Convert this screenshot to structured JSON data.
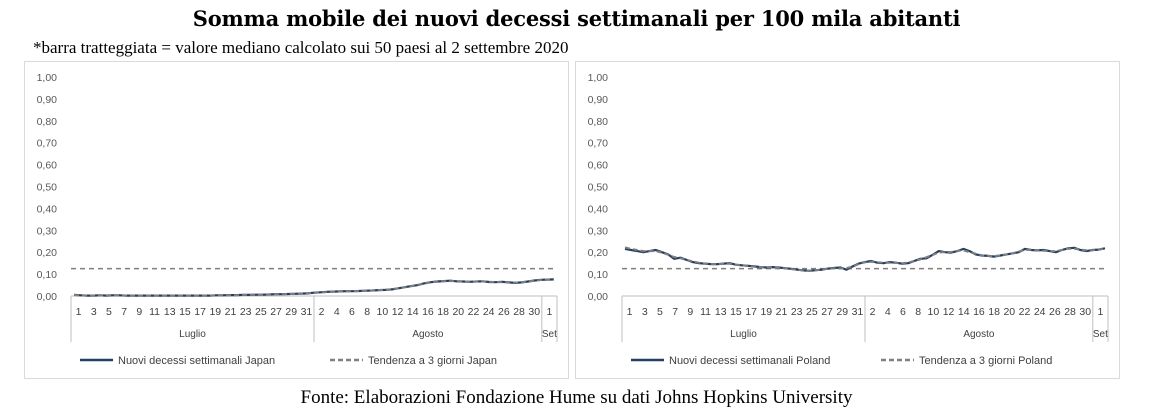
{
  "title": "Somma mobile dei nuovi decessi settimanali per 100 mila abitanti",
  "subtitle": "*barra tratteggiata = valore mediano calcolato sui 50 paesi al 2 settembre 2020",
  "footer": "Fonte: Elaborazioni Fondazione Hume su dati Johns Hopkins University",
  "colors": {
    "series": "#243f60",
    "trend": "#7f7f7f",
    "median": "#7f7f7f",
    "axis": "#bfbfbf"
  },
  "chart_data": [
    {
      "type": "line",
      "country": "Japan",
      "ylim": [
        0,
        1
      ],
      "y_ticks": [
        "0,00",
        "0,10",
        "0,20",
        "0,30",
        "0,40",
        "0,50",
        "0,60",
        "0,70",
        "0,80",
        "0,90",
        "1,00"
      ],
      "x_ticks": [
        "1",
        "3",
        "5",
        "7",
        "9",
        "11",
        "13",
        "15",
        "17",
        "19",
        "21",
        "23",
        "25",
        "27",
        "29",
        "31",
        "2",
        "4",
        "6",
        "8",
        "10",
        "12",
        "14",
        "16",
        "18",
        "20",
        "22",
        "24",
        "26",
        "28",
        "30",
        "1"
      ],
      "months": [
        "Luglio",
        "Agosto",
        "Set"
      ],
      "median": 0.125,
      "legend": [
        "Nuovi decessi settimanali Japan",
        "Tendenza a 3 giorni Japan"
      ],
      "series": [
        {
          "name": "Nuovi decessi settimanali Japan",
          "values": [
            0.005,
            0.003,
            0.002,
            0.002,
            0.003,
            0.002,
            0.003,
            0.003,
            0.002,
            0.002,
            0.002,
            0.002,
            0.002,
            0.002,
            0.002,
            0.002,
            0.002,
            0.002,
            0.002,
            0.002,
            0.002,
            0.002,
            0.003,
            0.003,
            0.004,
            0.004,
            0.005,
            0.005,
            0.006,
            0.006,
            0.007,
            0.008,
            0.008,
            0.009,
            0.01,
            0.011,
            0.012,
            0.015,
            0.017,
            0.019,
            0.02,
            0.021,
            0.022,
            0.022,
            0.023,
            0.024,
            0.025,
            0.027,
            0.028,
            0.03,
            0.035,
            0.04,
            0.045,
            0.05,
            0.058,
            0.063,
            0.066,
            0.068,
            0.07,
            0.067,
            0.066,
            0.065,
            0.066,
            0.067,
            0.064,
            0.063,
            0.065,
            0.062,
            0.06,
            0.062,
            0.066,
            0.071,
            0.074,
            0.075,
            0.076
          ]
        },
        {
          "name": "Tendenza a 3 giorni Japan",
          "values": [
            0.004,
            0.003,
            0.002,
            0.002,
            0.002,
            0.003,
            0.003,
            0.003,
            0.002,
            0.002,
            0.002,
            0.002,
            0.002,
            0.002,
            0.002,
            0.002,
            0.002,
            0.002,
            0.002,
            0.002,
            0.002,
            0.002,
            0.003,
            0.003,
            0.004,
            0.004,
            0.005,
            0.005,
            0.006,
            0.006,
            0.007,
            0.008,
            0.008,
            0.009,
            0.01,
            0.011,
            0.013,
            0.014,
            0.016,
            0.018,
            0.02,
            0.021,
            0.022,
            0.022,
            0.023,
            0.024,
            0.025,
            0.027,
            0.028,
            0.031,
            0.035,
            0.04,
            0.045,
            0.051,
            0.057,
            0.062,
            0.065,
            0.068,
            0.068,
            0.068,
            0.066,
            0.066,
            0.066,
            0.066,
            0.065,
            0.064,
            0.063,
            0.063,
            0.061,
            0.063,
            0.066,
            0.07,
            0.073,
            0.075,
            0.075
          ]
        }
      ]
    },
    {
      "type": "line",
      "country": "Poland",
      "ylim": [
        0,
        1
      ],
      "y_ticks": [
        "0,00",
        "0,10",
        "0,20",
        "0,30",
        "0,40",
        "0,50",
        "0,60",
        "0,70",
        "0,80",
        "0,90",
        "1,00"
      ],
      "x_ticks": [
        "1",
        "3",
        "5",
        "7",
        "9",
        "11",
        "13",
        "15",
        "17",
        "19",
        "21",
        "23",
        "25",
        "27",
        "29",
        "31",
        "2",
        "4",
        "6",
        "8",
        "10",
        "12",
        "14",
        "16",
        "18",
        "20",
        "22",
        "24",
        "26",
        "28",
        "30",
        "1"
      ],
      "months": [
        "Luglio",
        "Agosto",
        "Set"
      ],
      "median": 0.125,
      "legend": [
        "Nuovi decessi settimanali Poland",
        "Tendenza a 3 giorni Poland"
      ],
      "series": [
        {
          "name": "Nuovi decessi settimanali Poland",
          "values": [
            0.215,
            0.21,
            0.205,
            0.2,
            0.205,
            0.21,
            0.2,
            0.19,
            0.17,
            0.175,
            0.165,
            0.155,
            0.15,
            0.148,
            0.145,
            0.145,
            0.148,
            0.15,
            0.143,
            0.14,
            0.138,
            0.135,
            0.132,
            0.13,
            0.132,
            0.13,
            0.127,
            0.124,
            0.12,
            0.117,
            0.115,
            0.118,
            0.12,
            0.125,
            0.128,
            0.13,
            0.12,
            0.135,
            0.148,
            0.155,
            0.16,
            0.152,
            0.15,
            0.155,
            0.152,
            0.148,
            0.15,
            0.16,
            0.17,
            0.172,
            0.188,
            0.205,
            0.2,
            0.198,
            0.205,
            0.215,
            0.205,
            0.19,
            0.185,
            0.183,
            0.18,
            0.185,
            0.19,
            0.195,
            0.2,
            0.215,
            0.21,
            0.208,
            0.21,
            0.205,
            0.2,
            0.21,
            0.218,
            0.22,
            0.21,
            0.205,
            0.21,
            0.212,
            0.218
          ]
        },
        {
          "name": "Tendenza a 3 giorni Poland",
          "values": [
            0.222,
            0.215,
            0.21,
            0.205,
            0.205,
            0.205,
            0.198,
            0.188,
            0.178,
            0.172,
            0.165,
            0.158,
            0.152,
            0.148,
            0.146,
            0.146,
            0.147,
            0.147,
            0.143,
            0.14,
            0.137,
            0.134,
            0.132,
            0.131,
            0.131,
            0.129,
            0.126,
            0.123,
            0.12,
            0.117,
            0.116,
            0.118,
            0.121,
            0.124,
            0.126,
            0.126,
            0.128,
            0.134,
            0.146,
            0.154,
            0.156,
            0.154,
            0.152,
            0.152,
            0.151,
            0.15,
            0.153,
            0.16,
            0.167,
            0.177,
            0.188,
            0.198,
            0.201,
            0.201,
            0.206,
            0.208,
            0.2,
            0.193,
            0.186,
            0.183,
            0.182,
            0.185,
            0.19,
            0.195,
            0.203,
            0.21,
            0.211,
            0.209,
            0.207,
            0.205,
            0.205,
            0.21,
            0.216,
            0.216,
            0.212,
            0.209,
            0.209,
            0.213,
            0.216
          ]
        }
      ]
    }
  ]
}
